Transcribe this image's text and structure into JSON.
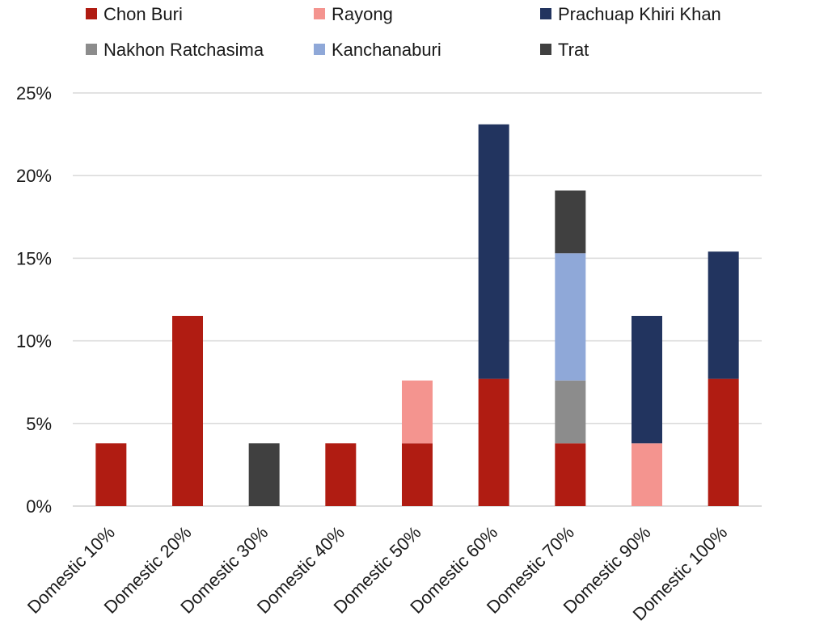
{
  "chart_data": {
    "type": "bar",
    "stacked": true,
    "title": "",
    "xlabel": "",
    "ylabel": "",
    "ylim": [
      0,
      25
    ],
    "yticks": [
      "0%",
      "5%",
      "10%",
      "15%",
      "20%",
      "25%"
    ],
    "grid": true,
    "legend_position": "top",
    "categories": [
      "Domestic 10%",
      "Domestic 20%",
      "Domestic 30%",
      "Domestic 40%",
      "Domestic 50%",
      "Domestic 60%",
      "Domestic 70%",
      "Domestic 90%",
      "Domestic 100%"
    ],
    "series": [
      {
        "name": "Chon Buri",
        "color": "#b01c12",
        "values": [
          3.8,
          11.5,
          0,
          3.8,
          3.8,
          7.7,
          3.8,
          0,
          7.7
        ]
      },
      {
        "name": "Nakhon Ratchasima",
        "color": "#8c8c8c",
        "values": [
          0,
          0,
          0,
          0,
          0,
          0,
          3.8,
          0,
          0
        ]
      },
      {
        "name": "Rayong",
        "color": "#f4948f",
        "values": [
          0,
          0,
          0,
          0,
          3.8,
          0,
          0,
          3.8,
          0
        ]
      },
      {
        "name": "Kanchanaburi",
        "color": "#8fa8d8",
        "values": [
          0,
          0,
          0,
          0,
          0,
          0,
          7.7,
          0,
          0
        ]
      },
      {
        "name": "Prachuap Khiri Khan",
        "color": "#22345f",
        "values": [
          0,
          0,
          0,
          0,
          0,
          15.4,
          0,
          7.7,
          7.7
        ]
      },
      {
        "name": "Trat",
        "color": "#404040",
        "values": [
          0,
          0,
          3.8,
          0,
          0,
          0,
          3.8,
          0,
          0
        ]
      }
    ],
    "legend_order": [
      "Chon Buri",
      "Rayong",
      "Prachuap Khiri Khan",
      "Nakhon Ratchasima",
      "Kanchanaburi",
      "Trat"
    ]
  }
}
